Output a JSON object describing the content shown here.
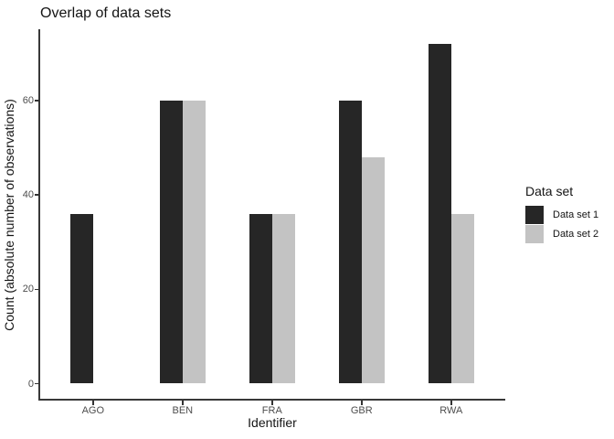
{
  "chart_data": {
    "type": "bar",
    "bar_mode": "dodge",
    "title": "Overlap of data sets",
    "xlabel": "Identifier",
    "ylabel": "Count (absolute number of observations)",
    "categories": [
      "AGO",
      "BEN",
      "FRA",
      "GBR",
      "RWA"
    ],
    "series": [
      {
        "name": "Data set 1",
        "color": "#262626",
        "values": [
          36,
          60,
          36,
          60,
          72
        ]
      },
      {
        "name": "Data set 2",
        "color": "#c3c3c3",
        "values": [
          null,
          60,
          36,
          48,
          36
        ]
      }
    ],
    "yticks": [
      0,
      20,
      40,
      60
    ],
    "ylim": [
      0,
      75
    ],
    "grid": false,
    "legend": {
      "title": "Data set",
      "position": "right",
      "entries": [
        "Data set 1",
        "Data set 2"
      ]
    }
  },
  "colors": {
    "series_1": "#262626",
    "series_2": "#c3c3c3",
    "axis_line": "#383838",
    "tick_label": "#4d4d4d",
    "text": "#141414",
    "background": "#ffffff"
  }
}
